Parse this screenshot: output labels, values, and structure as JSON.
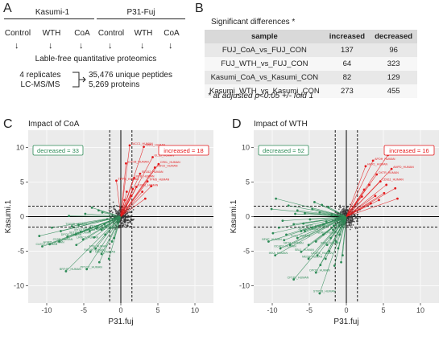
{
  "panelA": {
    "letter": "A",
    "group1": "Kasumi-1",
    "group2": "P31-Fuj",
    "conditions": [
      "Control",
      "WTH",
      "CoA",
      "Control",
      "WTH",
      "CoA"
    ],
    "method": "Lable-free quantitative proteomics",
    "replicates": "4 replicates",
    "instrument": "LC-MS/MS",
    "peptides": "35,476 unique peptides",
    "proteins": "5,269 proteins"
  },
  "panelB": {
    "letter": "B",
    "title": "Significant differences *",
    "headers": [
      "sample",
      "increased",
      "decreased"
    ],
    "rows": [
      {
        "sample": "FUJ_CoA_vs_FUJ_CON",
        "increased": "137",
        "decreased": "96"
      },
      {
        "sample": "FUJ_WTH_vs_FUJ_CON",
        "increased": "64",
        "decreased": "323"
      },
      {
        "sample": "Kasumi_CoA_vs_Kasumi_CON",
        "increased": "82",
        "decreased": "129"
      },
      {
        "sample": "Kasumi_WTH_vs_Kasumi_CON",
        "increased": "273",
        "decreased": "455"
      }
    ],
    "footnote": "* at adjusted p<0.05 +/- fold 1"
  },
  "colors": {
    "increased": "#e41a1c",
    "decreased": "#2e8b57",
    "neutral": "#333333"
  },
  "chart_data": [
    {
      "letter": "C",
      "type": "scatter",
      "title": "Impact of CoA",
      "xlabel": "P31.fuj",
      "ylabel": "Kasumi.1",
      "xlim": [
        -12.5,
        12.5
      ],
      "ylim": [
        -12.5,
        12.5
      ],
      "xticks": [
        -10,
        -5,
        0,
        5,
        10
      ],
      "yticks": [
        -10,
        -5,
        0,
        5,
        10
      ],
      "threshold": 1.5,
      "grid": true,
      "legend_decreased": "decreased = 33",
      "legend_increased": "increased = 18",
      "increased_points": [
        [
          3.1,
          10.1
        ],
        [
          1.2,
          10.3
        ],
        [
          4.3,
          8.6
        ],
        [
          5.1,
          7.6
        ],
        [
          4.6,
          7.1
        ],
        [
          0.7,
          7.7
        ],
        [
          2.6,
          6.2
        ],
        [
          -0.6,
          5.2
        ],
        [
          1.8,
          5.6
        ],
        [
          3.6,
          5.1
        ],
        [
          2.1,
          4.3
        ],
        [
          4.1,
          4.4
        ],
        [
          1.6,
          4.0
        ],
        [
          0.8,
          3.6
        ],
        [
          2.9,
          3.6
        ],
        [
          1.4,
          3.0
        ],
        [
          3.3,
          2.6
        ],
        [
          0.5,
          2.4
        ]
      ],
      "decreased_points": [
        [
          -7.4,
          -7.9
        ],
        [
          -4.6,
          -7.6
        ],
        [
          -10.6,
          -4.3
        ],
        [
          -9.6,
          -4.0
        ],
        [
          -8.3,
          -3.6
        ],
        [
          -7.2,
          -2.9
        ],
        [
          -6.1,
          -2.6
        ],
        [
          -5.4,
          -2.2
        ],
        [
          -4.2,
          -2.1
        ],
        [
          -3.3,
          -1.7
        ],
        [
          -2.6,
          -1.9
        ],
        [
          -6.6,
          -1.4
        ],
        [
          -3.4,
          -4.6
        ],
        [
          -4.1,
          -5.1
        ],
        [
          -2.6,
          -5.4
        ],
        [
          -5.1,
          -3.3
        ],
        [
          -2.1,
          -2.6
        ],
        [
          -3.6,
          -3.0
        ],
        [
          -2.5,
          0.6
        ],
        [
          -1.2,
          -3.6
        ],
        [
          -0.9,
          -3.1
        ],
        [
          -1.6,
          -6.1
        ],
        [
          -2.9,
          -6.6
        ],
        [
          -8.1,
          -2.1
        ],
        [
          -9.3,
          -1.6
        ],
        [
          -11.0,
          -2.8
        ],
        [
          -6.0,
          -4.1
        ],
        [
          -4.8,
          0.4
        ],
        [
          -3.9,
          1.3
        ],
        [
          -7.0,
          0.1
        ],
        [
          -2.2,
          -1.1
        ],
        [
          -5.7,
          -1.2
        ],
        [
          -3.0,
          0.9
        ]
      ],
      "point_labels_increased": [
        "RAN1_HUMAN",
        "TACC1_HUMAN",
        "GL1B_HUMAN",
        "CRKL_HUMAN",
        "ZNF22_HUMAN",
        "ELF1B_HUMAN",
        "SEC62_HUMAN",
        "TIPPS_HUMAN",
        "MYB_HUMAN",
        "TPMS_HUMAN",
        "EGR1_HUMAN"
      ],
      "point_labels_decreased": [
        "BRF4P_HUMAN",
        "PP1CC_HUMAN",
        "CLEC2_HUMAN",
        "AGRI5_HUMAN",
        "CD5B_HUMAN",
        "DPOD_HUMAN",
        "SETBP_HUMAN",
        "MYO7_HUMAN",
        "FOXP1_HUMAN",
        "PEX14_HUMAN",
        "ODC3_HUMAN",
        "TOP3B_HUMAN",
        "FYB_HUMAN",
        "RAGA_HUMAN",
        "NACA_HUMAN",
        "LRRC7_HUMAN"
      ]
    },
    {
      "letter": "D",
      "type": "scatter",
      "title": "Impact of WTH",
      "xlabel": "P31.fuj",
      "ylabel": "Kasumi.1",
      "xlim": [
        -12.5,
        12.5
      ],
      "ylim": [
        -12.5,
        12.5
      ],
      "xticks": [
        -10,
        -5,
        0,
        5,
        10
      ],
      "yticks": [
        -10,
        -5,
        0,
        5,
        10
      ],
      "threshold": 1.5,
      "grid": true,
      "legend_decreased": "decreased = 52",
      "legend_increased": "increased = 16",
      "increased_points": [
        [
          5.6,
          8.9
        ],
        [
          3.6,
          8.1
        ],
        [
          6.1,
          6.9
        ],
        [
          2.6,
          7.3
        ],
        [
          4.1,
          6.1
        ],
        [
          4.6,
          5.1
        ],
        [
          5.4,
          4.6
        ],
        [
          6.6,
          4.1
        ],
        [
          3.1,
          4.6
        ],
        [
          2.4,
          3.9
        ],
        [
          5.1,
          3.4
        ],
        [
          3.9,
          3.0
        ],
        [
          2.1,
          2.9
        ],
        [
          6.9,
          2.6
        ],
        [
          4.4,
          2.4
        ],
        [
          3.3,
          1.9
        ]
      ],
      "decreased_points": [
        [
          -4.1,
          -8.1
        ],
        [
          -3.6,
          -11.1
        ],
        [
          -7.1,
          -9.1
        ],
        [
          -9.6,
          -5.6
        ],
        [
          -10.5,
          -3.6
        ],
        [
          -8.9,
          -4.6
        ],
        [
          -7.6,
          -4.1
        ],
        [
          -6.6,
          -3.1
        ],
        [
          -5.6,
          -2.1
        ],
        [
          -4.6,
          -1.6
        ],
        [
          -3.1,
          -2.6
        ],
        [
          -6.1,
          -5.1
        ],
        [
          -5.1,
          -6.1
        ],
        [
          -3.9,
          -5.6
        ],
        [
          -2.6,
          -4.1
        ],
        [
          -2.1,
          -3.1
        ],
        [
          -8.1,
          -2.6
        ],
        [
          -9.1,
          -1.6
        ],
        [
          -10.1,
          1.1
        ],
        [
          -9.5,
          2.6
        ],
        [
          -7.8,
          1.6
        ],
        [
          -6.6,
          0.9
        ],
        [
          -5.6,
          0.5
        ],
        [
          -4.6,
          1.1
        ],
        [
          -3.6,
          0.6
        ],
        [
          -2.4,
          1.4
        ],
        [
          -1.8,
          -1.9
        ],
        [
          -1.1,
          -4.6
        ],
        [
          -0.7,
          -6.6
        ],
        [
          -1.6,
          -7.1
        ],
        [
          -2.8,
          -6.1
        ],
        [
          -4.1,
          -3.6
        ],
        [
          -5.1,
          -4.1
        ],
        [
          -6.1,
          -2.1
        ],
        [
          -7.1,
          -1.1
        ],
        [
          -8.6,
          -0.6
        ],
        [
          -3.1,
          -1.1
        ],
        [
          -2.0,
          0.2
        ],
        [
          -4.9,
          -0.4
        ],
        [
          -6.9,
          0.4
        ],
        [
          -0.9,
          -2.6
        ],
        [
          -1.4,
          -3.6
        ],
        [
          -2.3,
          -5.0
        ],
        [
          -3.5,
          -7.0
        ],
        [
          -0.5,
          -5.6
        ],
        [
          -8.4,
          -3.4
        ],
        [
          -9.9,
          -2.4
        ],
        [
          -5.8,
          -1.0
        ],
        [
          -4.3,
          2.1
        ],
        [
          -3.3,
          1.7
        ],
        [
          -1.7,
          -1.3
        ],
        [
          -2.7,
          -0.7
        ]
      ],
      "point_labels_increased": [
        "TMOD1_HUMAN",
        "APOH_HUMAN",
        "AMPD_HUMAN",
        "HMX1_HUMAN",
        "OXTR_HUMAN",
        "CDS11_HUMAN"
      ],
      "point_labels_decreased": [
        "DPOD_HUMAN",
        "STIP1B_HUMAN",
        "CP1B1_HUMAN",
        "IKKA_HUMAN",
        "BFAP_HUMAN",
        "OCAD2_HUMAN",
        "NFYA_HUMAN",
        "FCL2_HUMAN",
        "AFTN_HUMAN",
        "USP2_HUMAN",
        "NDRG_HUMAN",
        "SBL1_HUMAN",
        "MED8_HUMAN",
        "CKAP1_HUMAN",
        "INSR_HUMAN"
      ]
    }
  ]
}
